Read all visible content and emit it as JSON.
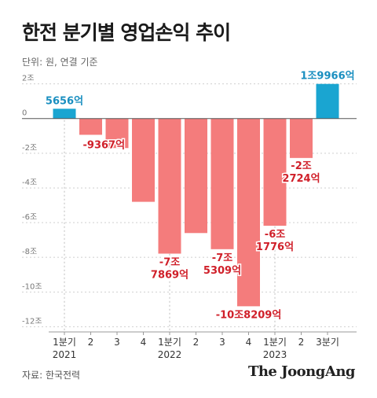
{
  "title": "한전 분기별 영업손익 추이",
  "unit_note": "단위: 원, 연결 기준",
  "source": "자료: 한국전력",
  "brand": "The JoongAng",
  "colors": {
    "positive": "#1aa5d1",
    "negative": "#f47c7c",
    "positive_label": "#1a8fc0",
    "negative_label": "#d0202a",
    "axis": "#888888"
  },
  "chart_data": {
    "type": "bar",
    "ylim": [
      -12.3,
      2.3
    ],
    "yticks": [
      {
        "value": 2,
        "label": "2조"
      },
      {
        "value": 0,
        "label": "0"
      },
      {
        "value": -2,
        "label": "-2조"
      },
      {
        "value": -4,
        "label": "-4조"
      },
      {
        "value": -6,
        "label": "-6조"
      },
      {
        "value": -8,
        "label": "-8조"
      },
      {
        "value": -10,
        "label": "-10조"
      },
      {
        "value": -12,
        "label": "-12조"
      }
    ],
    "categories": [
      "1분기",
      "2",
      "3",
      "4",
      "1분기",
      "2",
      "3",
      "4",
      "1분기",
      "2",
      "3분기"
    ],
    "years": [
      {
        "index": 0,
        "label": "2021"
      },
      {
        "index": 4,
        "label": "2022"
      },
      {
        "index": 8,
        "label": "2023"
      }
    ],
    "values": [
      0.5656,
      -0.9367,
      -1.7,
      -4.8,
      -7.7869,
      -6.6,
      -7.5309,
      -10.8209,
      -6.1776,
      -2.2724,
      1.9966
    ],
    "data_labels": [
      [
        "5656억"
      ],
      [
        "-9367억"
      ],
      [],
      [],
      [
        "-7조",
        "7869억"
      ],
      [],
      [
        "-7조",
        "5309억"
      ],
      [
        "-10조8209억"
      ],
      [
        "-6조",
        "1776억"
      ],
      [
        "-2조",
        "2724억"
      ],
      [
        "1조9966억"
      ]
    ]
  }
}
